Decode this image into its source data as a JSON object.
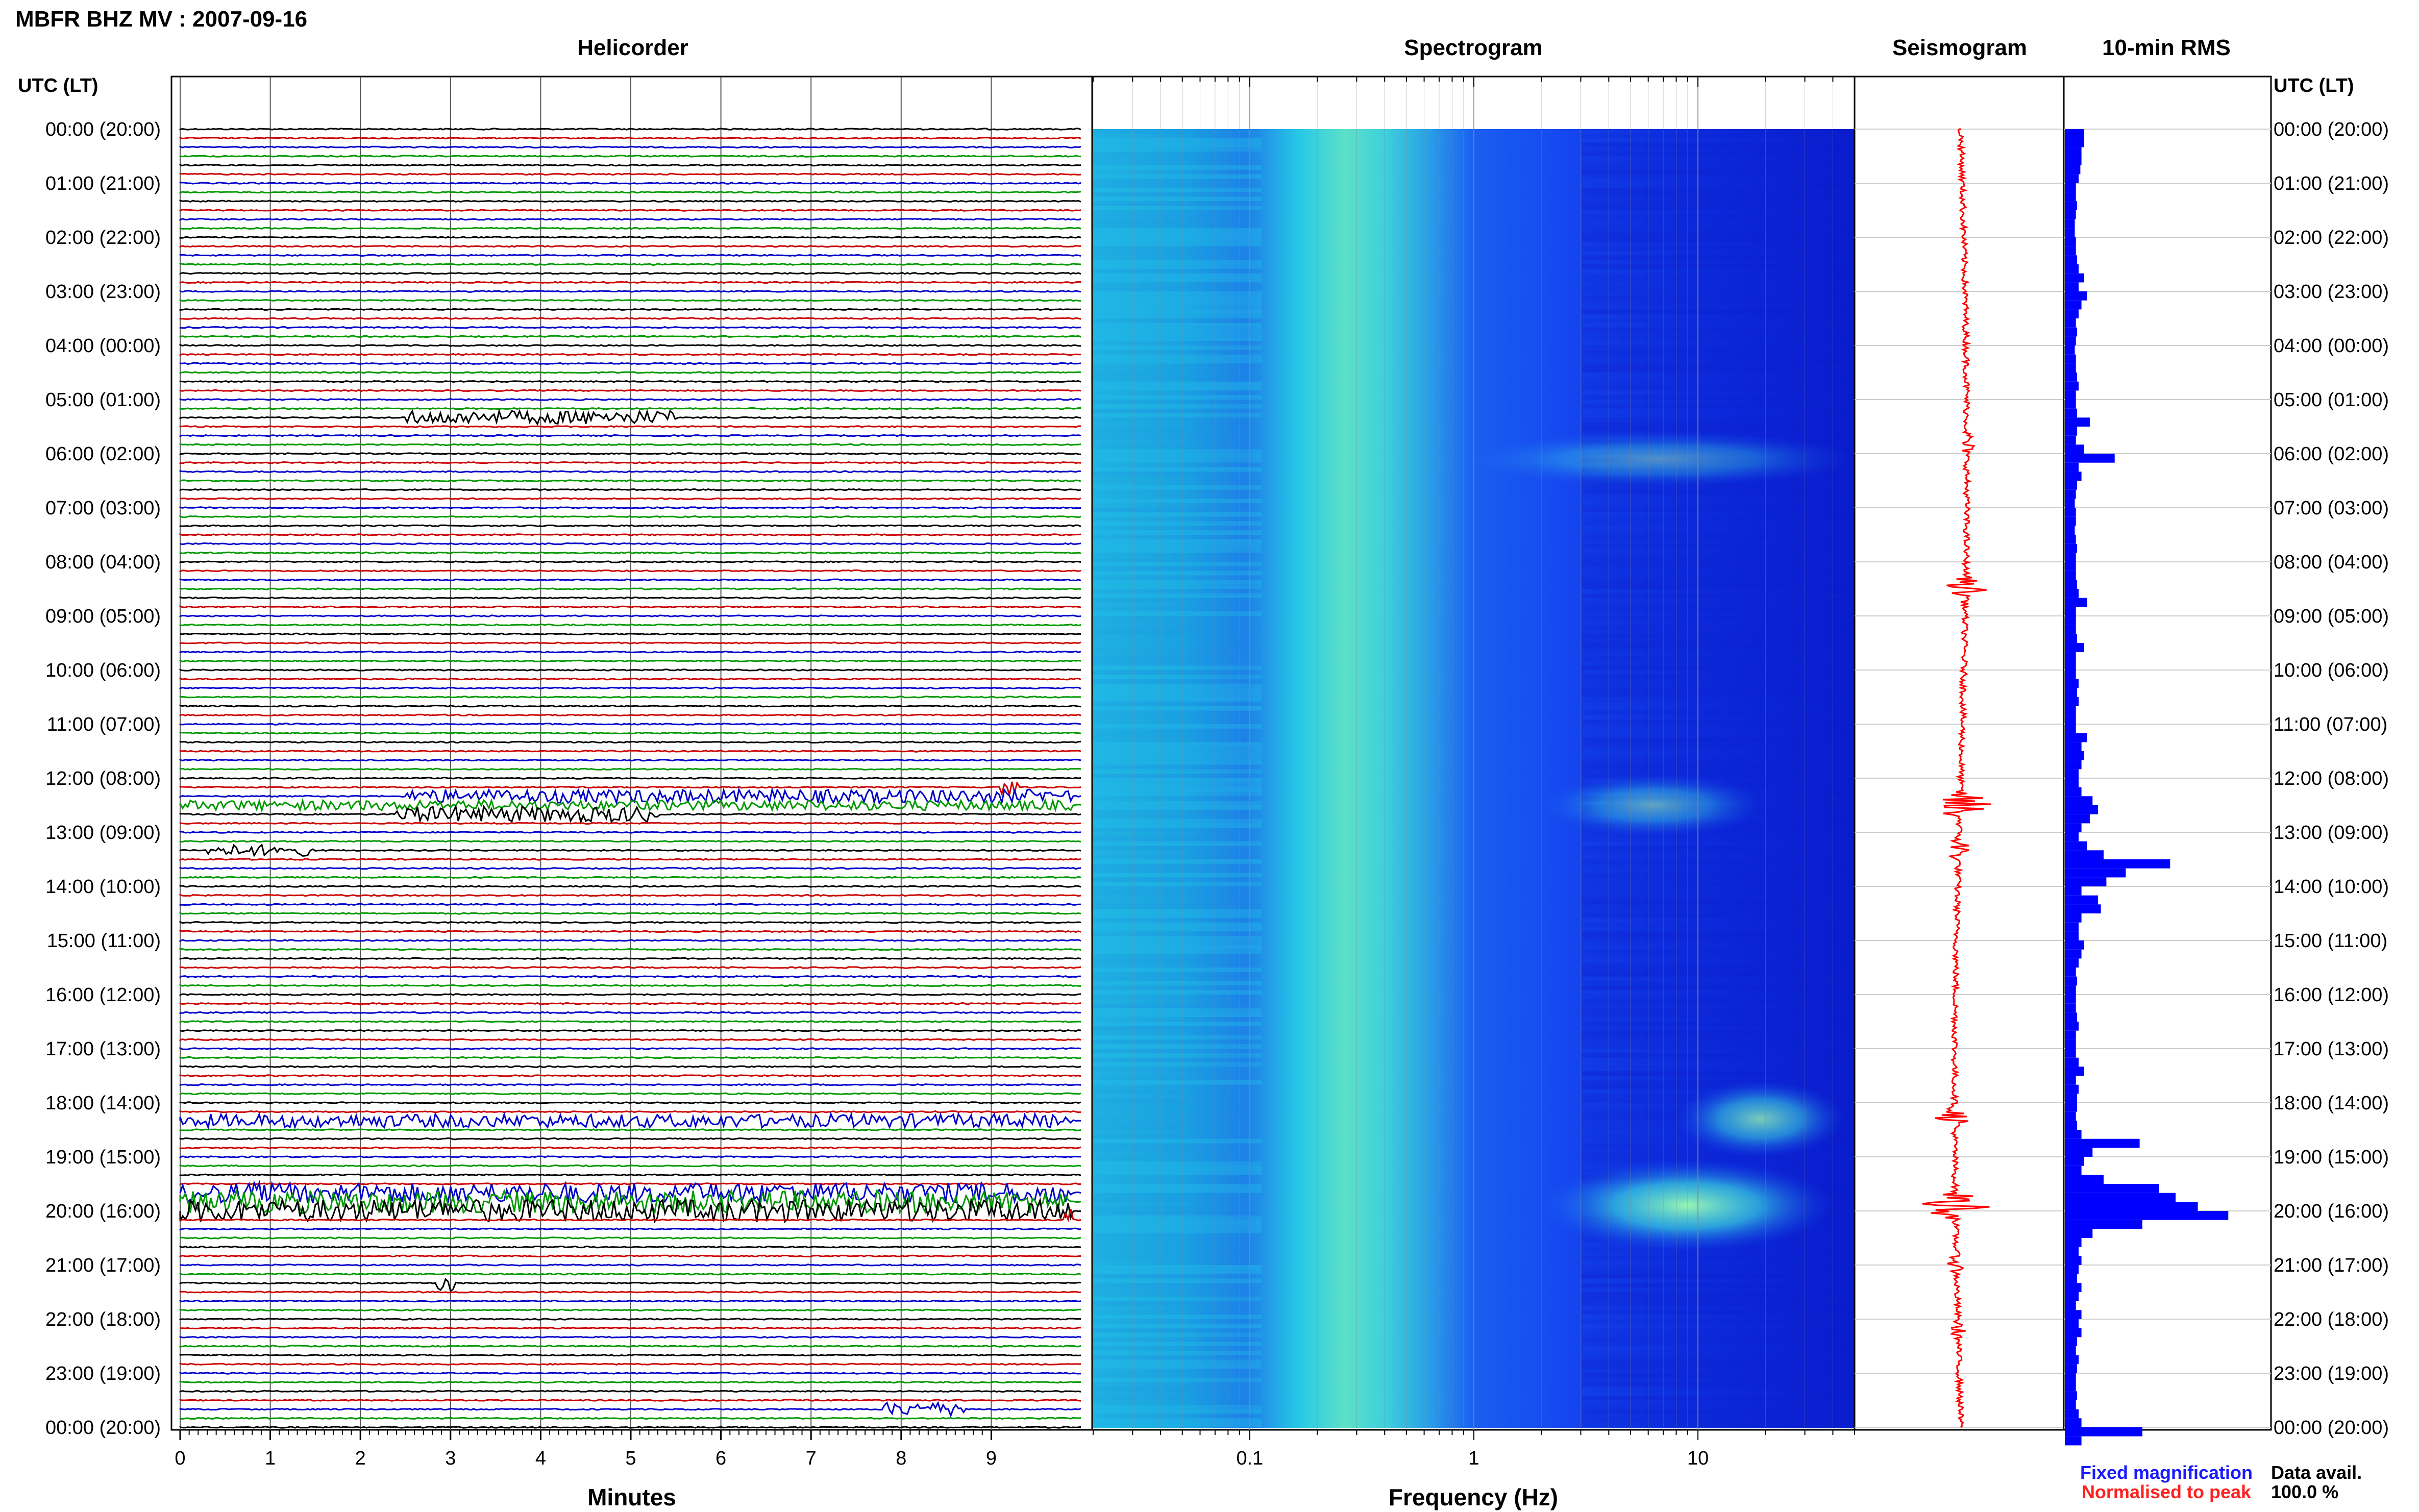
{
  "page_title": "MBFR BHZ MV : 2007-09-16",
  "panels": {
    "helicorder": "Helicorder",
    "spectrogram": "Spectrogram",
    "seismogram": "Seismogram",
    "rms": "10-min RMS"
  },
  "time_axis_header": "UTC (LT)",
  "time_labels": [
    "00:00 (20:00)",
    "01:00 (21:00)",
    "02:00 (22:00)",
    "03:00 (23:00)",
    "04:00 (00:00)",
    "05:00 (01:00)",
    "06:00 (02:00)",
    "07:00 (03:00)",
    "08:00 (04:00)",
    "09:00 (05:00)",
    "10:00 (06:00)",
    "11:00 (07:00)",
    "12:00 (08:00)",
    "13:00 (09:00)",
    "14:00 (10:00)",
    "15:00 (11:00)",
    "16:00 (12:00)",
    "17:00 (13:00)",
    "18:00 (14:00)",
    "19:00 (15:00)",
    "20:00 (16:00)",
    "21:00 (17:00)",
    "22:00 (18:00)",
    "23:00 (19:00)",
    "00:00 (20:00)"
  ],
  "helicorder_axis": {
    "xlabel": "Minutes",
    "ticks": [
      "0",
      "1",
      "2",
      "3",
      "4",
      "5",
      "6",
      "7",
      "8",
      "9"
    ]
  },
  "spectrogram_axis": {
    "xlabel": "Frequency (Hz)",
    "ticks": [
      "0.1",
      "1",
      "10"
    ],
    "scale": "log"
  },
  "legend": {
    "fixed": "Fixed magnification",
    "normalised": "Normalised to peak",
    "fixed_color": "#1a1aff",
    "normalised_color": "#ff2020"
  },
  "data_avail": {
    "label": "Data avail.",
    "value": "100.0 %"
  },
  "colors": {
    "trace_cycle": [
      "#000000",
      "#cc0000",
      "#0000cc",
      "#009900"
    ],
    "rms_bar": "#0000ff",
    "seismogram": "#ff0000"
  },
  "chart_data": [
    {
      "type": "line",
      "title": "Helicorder",
      "xlabel": "Minutes",
      "xlim": [
        0,
        10
      ],
      "lines_per_hour": 6,
      "events": [
        {
          "hour": 5.33,
          "minute_start": 2.5,
          "minute_end": 5.5,
          "amp": 0.6
        },
        {
          "hour": 12.17,
          "minute_start": 9.1,
          "minute_end": 9.3,
          "amp": 0.7
        },
        {
          "hour": 12.33,
          "minute_start": 2.5,
          "minute_end": 9.9,
          "amp": 0.6
        },
        {
          "hour": 12.5,
          "minute_start": 0,
          "minute_end": 9.9,
          "amp": 0.45
        },
        {
          "hour": 12.67,
          "minute_start": 2.4,
          "minute_end": 5.3,
          "amp": 0.7
        },
        {
          "hour": 13.33,
          "minute_start": 0.3,
          "minute_end": 1.5,
          "amp": 0.5
        },
        {
          "hour": 18.33,
          "minute_start": 0,
          "minute_end": 9.9,
          "amp": 0.6
        },
        {
          "hour": 19.67,
          "minute_start": 0,
          "minute_end": 9.9,
          "amp": 0.9
        },
        {
          "hour": 19.83,
          "minute_start": 0,
          "minute_end": 9.9,
          "amp": 1.0
        },
        {
          "hour": 20,
          "minute_start": 0,
          "minute_end": 9.9,
          "amp": 1.0
        },
        {
          "hour": 20.17,
          "minute_start": 9.8,
          "minute_end": 9.9,
          "amp": 1.0
        },
        {
          "hour": 21.33,
          "minute_start": 2.85,
          "minute_end": 3.05,
          "amp": 0.8
        },
        {
          "hour": 23.67,
          "minute_start": 7.8,
          "minute_end": 8.8,
          "amp": 0.6
        }
      ]
    },
    {
      "type": "heatmap",
      "title": "Spectrogram",
      "xlabel": "Frequency (Hz)",
      "xscale": "log",
      "xlim": [
        0.02,
        50
      ],
      "events": [
        {
          "hour": 6.1,
          "freq_from": 0.9,
          "freq_to": 50,
          "intensity": 0.5
        },
        {
          "hour": 12.5,
          "freq_from": 2,
          "freq_to": 20,
          "intensity": 0.6
        },
        {
          "hour": 18.3,
          "freq_from": 8,
          "freq_to": 45,
          "intensity": 0.8
        },
        {
          "hour": 19.9,
          "freq_from": 2,
          "freq_to": 40,
          "intensity": 1.0
        }
      ]
    },
    {
      "type": "line",
      "title": "Seismogram",
      "events": [
        {
          "hour": 5.8,
          "amp": 0.15
        },
        {
          "hour": 8.5,
          "amp": 0.35
        },
        {
          "hour": 12.5,
          "amp": 0.6
        },
        {
          "hour": 13.3,
          "amp": 0.25
        },
        {
          "hour": 18.3,
          "amp": 0.3
        },
        {
          "hour": 19.9,
          "amp": 0.65
        },
        {
          "hour": 21.0,
          "amp": 0.15
        },
        {
          "hour": 22.2,
          "amp": 0.12
        }
      ]
    },
    {
      "type": "bar",
      "title": "10-min RMS",
      "orientation": "horizontal",
      "bins_per_hour": 6,
      "values": [
        0.35,
        0.35,
        0.3,
        0.3,
        0.28,
        0.25,
        0.2,
        0.2,
        0.22,
        0.2,
        0.18,
        0.18,
        0.2,
        0.2,
        0.22,
        0.25,
        0.35,
        0.25,
        0.4,
        0.3,
        0.25,
        0.2,
        0.22,
        0.2,
        0.18,
        0.2,
        0.2,
        0.22,
        0.25,
        0.2,
        0.2,
        0.22,
        0.45,
        0.22,
        0.2,
        0.35,
        0.9,
        0.25,
        0.3,
        0.22,
        0.2,
        0.18,
        0.2,
        0.2,
        0.18,
        0.2,
        0.22,
        0.2,
        0.2,
        0.2,
        0.22,
        0.25,
        0.4,
        0.2,
        0.2,
        0.2,
        0.22,
        0.35,
        0.2,
        0.2,
        0.2,
        0.25,
        0.22,
        0.25,
        0.2,
        0.2,
        0.2,
        0.4,
        0.3,
        0.35,
        0.3,
        0.25,
        0.25,
        0.3,
        0.5,
        0.6,
        0.45,
        0.3,
        0.25,
        0.4,
        0.7,
        1.9,
        1.1,
        0.75,
        0.3,
        0.6,
        0.65,
        0.3,
        0.25,
        0.25,
        0.35,
        0.3,
        0.25,
        0.2,
        0.22,
        0.2,
        0.2,
        0.2,
        0.22,
        0.25,
        0.2,
        0.2,
        0.2,
        0.25,
        0.35,
        0.2,
        0.25,
        0.22,
        0.22,
        0.2,
        0.22,
        0.3,
        1.35,
        0.5,
        0.35,
        0.3,
        0.7,
        1.7,
        2.0,
        2.4,
        2.95,
        1.4,
        0.5,
        0.3,
        0.25,
        0.3,
        0.25,
        0.22,
        0.3,
        0.25,
        0.2,
        0.3,
        0.25,
        0.3,
        0.22,
        0.2,
        0.25,
        0.22,
        0.2,
        0.2,
        0.22,
        0.2,
        0.25,
        0.3,
        1.4,
        0.3
      ]
    }
  ]
}
